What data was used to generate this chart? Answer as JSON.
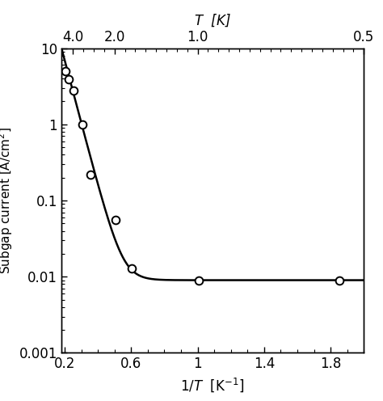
{
  "data_points_x": [
    0.205,
    0.225,
    0.255,
    0.305,
    0.355,
    0.505,
    0.605,
    1.005,
    1.855
  ],
  "data_points_y": [
    5.0,
    3.9,
    2.8,
    1.0,
    0.22,
    0.055,
    0.013,
    0.009,
    0.009
  ],
  "xlim": [
    0.18,
    2.0
  ],
  "ylim": [
    0.001,
    10
  ],
  "xlabel_bottom": "1/$T$  [K$^{-1}$]",
  "xlabel_top": "$T$  [K]",
  "ylabel": "Subgap current [A/cm$^2$]",
  "xticks_bottom": [
    0.2,
    0.6,
    1.0,
    1.4,
    1.8
  ],
  "xticks_bottom_labels": [
    "0.2",
    "0.6",
    "1",
    "1.4",
    "1.8"
  ],
  "xticks_top_T_vals": [
    4.0,
    2.0,
    1.0,
    0.5
  ],
  "xticks_top_labels": [
    "4.0",
    "2.0",
    "1.0",
    "0.5"
  ],
  "yticks": [
    0.001,
    0.01,
    0.1,
    1,
    10
  ],
  "ytick_labels": [
    "0.001",
    "0.01",
    "0.1",
    "1",
    "10"
  ],
  "A_param": 312.0,
  "B_param": 19.0,
  "floor_param": 0.009,
  "background_color": "#ffffff",
  "line_color": "#000000",
  "marker_facecolor": "#ffffff",
  "marker_edgecolor": "#000000",
  "line_width": 1.8,
  "marker_size": 7,
  "marker_edge_width": 1.4
}
